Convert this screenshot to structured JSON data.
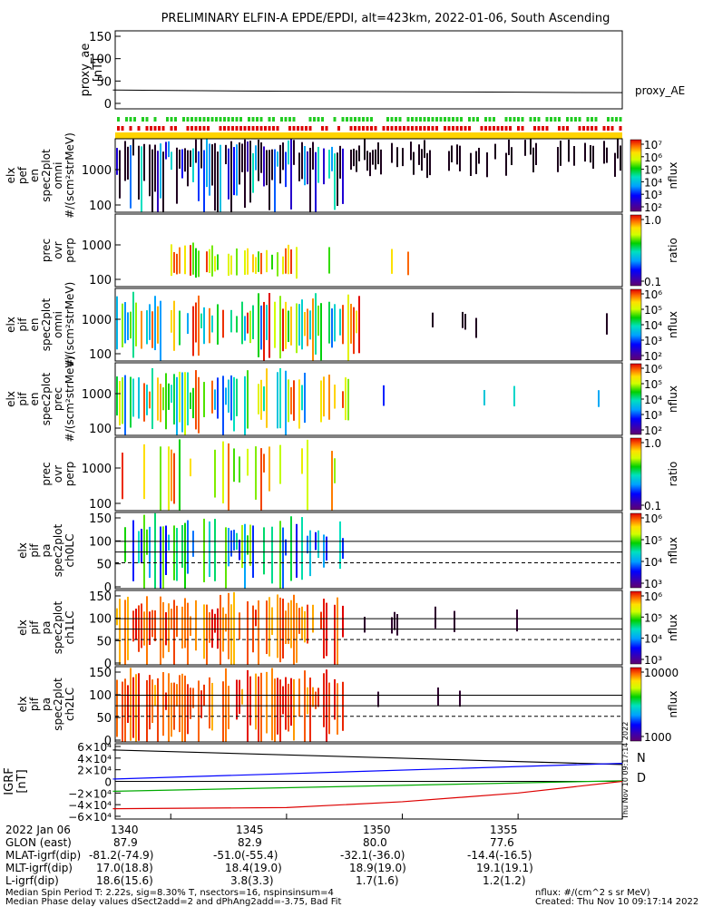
{
  "chart_data": {
    "type": "heatmap",
    "title": "PRELIMINARY ELFIN-A EPDE/EPDI, alt=423km, 2022-01-06, South Ascending",
    "x_ticks": [
      "1340",
      "1345",
      "1350",
      "1355"
    ],
    "panels": [
      {
        "name": "proxy_ae",
        "ylabel": [
          "proxy_ae",
          "[nT]"
        ],
        "yticks": [
          "0",
          "50",
          "100",
          "150"
        ],
        "ylim": [
          0,
          150
        ],
        "series_label": "proxy_AE",
        "line": {
          "x": [
            1337.5,
            1340,
            1345,
            1350,
            1355,
            1359.5
          ],
          "y": [
            30,
            29,
            27,
            26,
            25,
            24
          ]
        }
      },
      {
        "name": "elx-pef-en-spec2plot-omni",
        "ylabel": [
          "elx",
          "pef",
          "en",
          "spec2plot",
          "omni",
          "#/(scm²strMeV)"
        ],
        "yticks": [
          "100",
          "1000"
        ],
        "cbar": {
          "ticks": [
            "10⁷",
            "10⁶",
            "10⁵",
            "10⁴",
            "10³",
            "10²"
          ],
          "label": "nflux"
        }
      },
      {
        "name": "prec-ovr-perp-e",
        "ylabel": [
          "prec",
          "ovr",
          "perp"
        ],
        "yticks": [
          "100",
          "1000"
        ],
        "cbar": {
          "ticks": [
            "1.0",
            "0.1"
          ],
          "label": "ratio"
        }
      },
      {
        "name": "elx-pif-en-spec2plot-omni",
        "ylabel": [
          "elx",
          "pif",
          "en",
          "spec2plot",
          "omni",
          "#/(scm²strMeV)"
        ],
        "yticks": [
          "100",
          "1000"
        ],
        "cbar": {
          "ticks": [
            "10⁶",
            "10⁵",
            "10⁴",
            "10³",
            "10²"
          ],
          "label": "nflux"
        }
      },
      {
        "name": "elx-pif-en-spec2plot-prec",
        "ylabel": [
          "elx",
          "pif",
          "en",
          "spec2plot",
          "prec",
          "#/(scm²strMeV)"
        ],
        "yticks": [
          "100",
          "1000"
        ],
        "cbar": {
          "ticks": [
            "10⁶",
            "10⁵",
            "10⁴",
            "10³",
            "10²"
          ],
          "label": "nflux"
        }
      },
      {
        "name": "prec-ovr-perp-i",
        "ylabel": [
          "prec",
          "ovr",
          "perp"
        ],
        "yticks": [
          "100",
          "1000"
        ],
        "cbar": {
          "ticks": [
            "1.0",
            "0.1"
          ],
          "label": "ratio"
        }
      },
      {
        "name": "elx-pif-pa-spec2plot-ch0LC",
        "ylabel": [
          "elx",
          "pif",
          "pa",
          "spec2plot",
          "ch0LC"
        ],
        "yticks": [
          "0",
          "50",
          "100",
          "150"
        ],
        "cbar": {
          "ticks": [
            "10⁶",
            "10⁵",
            "10⁴",
            "10³"
          ],
          "label": "nflux"
        }
      },
      {
        "name": "elx-pif-pa-spec2plot-ch1LC",
        "ylabel": [
          "elx",
          "pif",
          "pa",
          "spec2plot",
          "ch1LC"
        ],
        "yticks": [
          "0",
          "50",
          "100",
          "150"
        ],
        "cbar": {
          "ticks": [
            "10⁶",
            "10⁵",
            "10⁴",
            "10³"
          ],
          "label": "nflux"
        }
      },
      {
        "name": "elx-pif-pa-spec2plot-ch2LC",
        "ylabel": [
          "elx",
          "pif",
          "pa",
          "spec2plot",
          "ch2LC"
        ],
        "yticks": [
          "0",
          "50",
          "100",
          "150"
        ],
        "cbar": {
          "ticks": [
            "10000",
            "1000"
          ],
          "label": "nflux"
        }
      },
      {
        "name": "IGRF",
        "ylabel": [
          "IGRF",
          "[nT]"
        ],
        "yticks": [
          "6×10⁴",
          "4×10⁴",
          "2×10⁴",
          "0",
          "−2×10⁴",
          "−4×10⁴",
          "−6×10⁴"
        ],
        "legend": [
          "N",
          "D"
        ],
        "series": [
          {
            "color": "#000000",
            "x": [
              1337.5,
              1359.5
            ],
            "y": [
              54000,
              29000
            ]
          },
          {
            "color": "#0000ff",
            "x": [
              1337.5,
              1359.5
            ],
            "y": [
              4000,
              31000
            ]
          },
          {
            "color": "#00aa00",
            "x": [
              1337.5,
              1359.5
            ],
            "y": [
              -17000,
              1000
            ]
          },
          {
            "color": "#dd0000",
            "x": [
              1337.5,
              1345,
              1350,
              1355,
              1359.5
            ],
            "y": [
              -47000,
              -45000,
              -35000,
              -20000,
              0
            ]
          }
        ]
      }
    ]
  },
  "vertical_stamp": "Thu Nov 10 09:17:14 2022",
  "footer_table": [
    {
      "label": "2022 Jan 06",
      "values": [
        "1340",
        "1345",
        "1350",
        "1355"
      ]
    },
    {
      "label": "GLON (east)",
      "values": [
        "87.9",
        "82.9",
        "80.0",
        "77.6"
      ]
    },
    {
      "label": "MLAT-igrf(dip)",
      "values": [
        "-81.2(-74.9)",
        "-51.0(-55.4)",
        "-32.1(-36.0)",
        "-14.4(-16.5)"
      ]
    },
    {
      "label": "MLT-igrf(dip)",
      "values": [
        "17.0(18.8)",
        "18.4(19.0)",
        "18.9(19.0)",
        "19.1(19.1)"
      ]
    },
    {
      "label": "L-igrf(dip)",
      "values": [
        "18.6(15.6)",
        "3.8(3.3)",
        "1.7(1.6)",
        "1.2(1.2)"
      ]
    }
  ],
  "footnotes": {
    "line1": "Median Spin Period T: 2.22s, sig=8.30% T, nsectors=16, nspinsinsum=4",
    "line2": "Median Phase delay values dSect2add=2 and dPhAng2add=-3.75, Bad Fit",
    "units": "nflux: #/(cm^2 s sr MeV)",
    "created": "Created: Thu Nov 10 09:17:14 2022"
  }
}
